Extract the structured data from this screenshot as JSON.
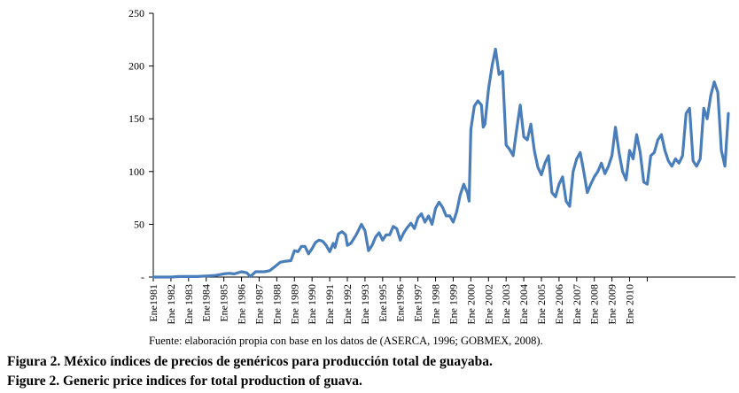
{
  "chart_data": {
    "type": "line",
    "title": "",
    "xlabel": "",
    "ylabel": "",
    "ylim": [
      0,
      250
    ],
    "yticks": [
      250,
      200,
      150,
      100,
      50
    ],
    "y_zero_label": "-",
    "grid": false,
    "legend": "none",
    "line_color": "#4a7ebb",
    "categories": [
      "Ene1981",
      "Ene 1982",
      "Ene 1983",
      "Ene1984",
      "Ene1985",
      "Ene 1986",
      "Ene 1987",
      "Ene 1988",
      "Ene 1989",
      "Ene 1990",
      "Ene 1991",
      "Ene 1992",
      "Ene 1993",
      "Ene1995",
      "Ene1996",
      "Ene1997",
      "Ene 1998",
      "Ene 1999",
      "Ene 2000",
      "Ene 2002",
      "Ene 2003",
      "Ene 2004",
      "Ene 2005",
      "Ene 2006",
      "Ene 2007",
      "Ene 2008",
      "Ene 2009",
      "Ene 2010"
    ],
    "series": [
      {
        "name": "Índice de precios",
        "points": [
          [
            0,
            0
          ],
          [
            0.5,
            0
          ],
          [
            1,
            0
          ],
          [
            1.5,
            0.5
          ],
          [
            2,
            0.5
          ],
          [
            2.5,
            0.5
          ],
          [
            3,
            1
          ],
          [
            3.5,
            1.5
          ],
          [
            4,
            3
          ],
          [
            4.3,
            3.5
          ],
          [
            4.6,
            3
          ],
          [
            5,
            5
          ],
          [
            5.3,
            4
          ],
          [
            5.5,
            0.5
          ],
          [
            5.8,
            5
          ],
          [
            6,
            5
          ],
          [
            6.3,
            5
          ],
          [
            6.6,
            6
          ],
          [
            6.9,
            10
          ],
          [
            7.2,
            14
          ],
          [
            7.5,
            15
          ],
          [
            7.8,
            15.5
          ],
          [
            8,
            25
          ],
          [
            8.2,
            24
          ],
          [
            8.4,
            29
          ],
          [
            8.6,
            29
          ],
          [
            8.8,
            22
          ],
          [
            9,
            27
          ],
          [
            9.2,
            33
          ],
          [
            9.4,
            35
          ],
          [
            9.6,
            34
          ],
          [
            9.8,
            30
          ],
          [
            10,
            24
          ],
          [
            10.2,
            32
          ],
          [
            10.3,
            28
          ],
          [
            10.5,
            41
          ],
          [
            10.7,
            43
          ],
          [
            10.9,
            40
          ],
          [
            11,
            30
          ],
          [
            11.2,
            32
          ],
          [
            11.5,
            40
          ],
          [
            11.8,
            50
          ],
          [
            12,
            44
          ],
          [
            12.2,
            25
          ],
          [
            12.4,
            30
          ],
          [
            12.6,
            38
          ],
          [
            12.8,
            42
          ],
          [
            13,
            35
          ],
          [
            13.2,
            40
          ],
          [
            13.4,
            40
          ],
          [
            13.6,
            48
          ],
          [
            13.8,
            46
          ],
          [
            14,
            35
          ],
          [
            14.2,
            42
          ],
          [
            14.4,
            47
          ],
          [
            14.6,
            51
          ],
          [
            14.8,
            46
          ],
          [
            15,
            56
          ],
          [
            15.2,
            60
          ],
          [
            15.4,
            52
          ],
          [
            15.6,
            58
          ],
          [
            15.8,
            50
          ],
          [
            16,
            65
          ],
          [
            16.2,
            71
          ],
          [
            16.4,
            66
          ],
          [
            16.6,
            58
          ],
          [
            16.8,
            58
          ],
          [
            17,
            52
          ],
          [
            17.2,
            62
          ],
          [
            17.4,
            78
          ],
          [
            17.6,
            88
          ],
          [
            17.8,
            80
          ],
          [
            17.9,
            72
          ],
          [
            18,
            140
          ],
          [
            18.2,
            162
          ],
          [
            18.4,
            167
          ],
          [
            18.6,
            163
          ],
          [
            18.7,
            142
          ],
          [
            18.8,
            145
          ],
          [
            19,
            178
          ],
          [
            19.2,
            200
          ],
          [
            19.4,
            216
          ],
          [
            19.6,
            192
          ],
          [
            19.8,
            195
          ],
          [
            20,
            125
          ],
          [
            20.2,
            121
          ],
          [
            20.4,
            115
          ],
          [
            20.6,
            140
          ],
          [
            20.8,
            163
          ],
          [
            21,
            133
          ],
          [
            21.2,
            130
          ],
          [
            21.4,
            145
          ],
          [
            21.6,
            120
          ],
          [
            21.8,
            104
          ],
          [
            22,
            97
          ],
          [
            22.2,
            108
          ],
          [
            22.4,
            115
          ],
          [
            22.6,
            80
          ],
          [
            22.8,
            76
          ],
          [
            23,
            88
          ],
          [
            23.2,
            95
          ],
          [
            23.4,
            72
          ],
          [
            23.6,
            67
          ],
          [
            23.8,
            100
          ],
          [
            24,
            112
          ],
          [
            24.2,
            118
          ],
          [
            24.4,
            100
          ],
          [
            24.6,
            80
          ],
          [
            24.8,
            88
          ],
          [
            25,
            95
          ],
          [
            25.2,
            100
          ],
          [
            25.4,
            108
          ],
          [
            25.6,
            98
          ],
          [
            25.8,
            105
          ],
          [
            26,
            115
          ],
          [
            26.2,
            142
          ],
          [
            26.4,
            118
          ],
          [
            26.6,
            100
          ],
          [
            26.8,
            92
          ],
          [
            27,
            120
          ],
          [
            27.2,
            112
          ],
          [
            27.4,
            135
          ],
          [
            27.6,
            118
          ],
          [
            27.8,
            90
          ],
          [
            28,
            88
          ],
          [
            28.2,
            115
          ],
          [
            28.4,
            118
          ],
          [
            28.6,
            130
          ],
          [
            28.8,
            135
          ],
          [
            29,
            120
          ],
          [
            29.2,
            110
          ],
          [
            29.4,
            105
          ],
          [
            29.6,
            112
          ],
          [
            29.8,
            108
          ],
          [
            30,
            115
          ],
          [
            30.2,
            155
          ],
          [
            30.4,
            160
          ],
          [
            30.6,
            110
          ],
          [
            30.8,
            105
          ],
          [
            31,
            112
          ],
          [
            31.2,
            160
          ],
          [
            31.4,
            150
          ],
          [
            31.6,
            172
          ],
          [
            31.8,
            185
          ],
          [
            32,
            175
          ],
          [
            32.2,
            120
          ],
          [
            32.4,
            105
          ],
          [
            32.6,
            155
          ]
        ]
      }
    ]
  },
  "source_note": "Fuente: elaboración propia con base en los datos de (ASERCA, 1996; GOBMEX, 2008).",
  "caption_es": "Figura 2. México índices de precios de genéricos para producción total de guayaba.",
  "caption_en": "Figure 2. Generic price indices for total production of guava."
}
